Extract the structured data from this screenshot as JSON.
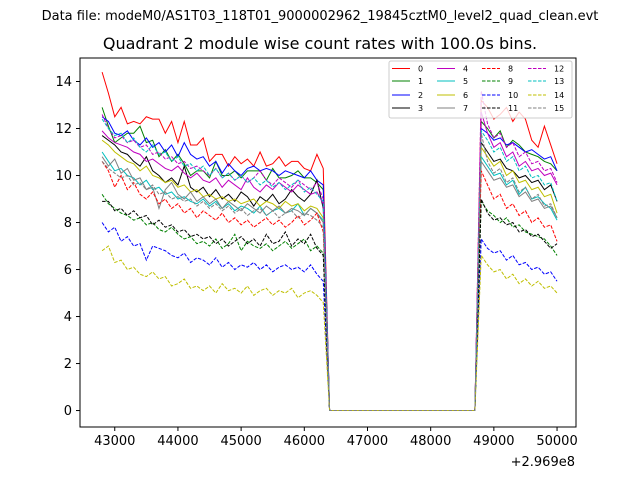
{
  "chart_data": {
    "type": "line",
    "suptitle": "Data file: modeM0/AS1T03_118T01_9000002962_19845cztM0_level2_quad_clean.evt",
    "title": "Quadrant 2 module wise count rates with 100.0s bins.",
    "xlabel": "",
    "ylabel": "",
    "x_offset_label": "+2.969e8",
    "xlim": [
      42450,
      50300
    ],
    "ylim": [
      -0.7,
      15.0
    ],
    "x_ticks": [
      43000,
      44000,
      45000,
      46000,
      47000,
      48000,
      49000,
      50000
    ],
    "x_tick_labels": [
      "43000",
      "44000",
      "45000",
      "46000",
      "47000",
      "48000",
      "49000",
      "50000"
    ],
    "y_ticks": [
      0,
      2,
      4,
      6,
      8,
      10,
      12,
      14
    ],
    "y_tick_labels": [
      "0",
      "2",
      "4",
      "6",
      "8",
      "10",
      "12",
      "14"
    ],
    "legend_position": "top-right",
    "legend_ncol": 4,
    "bin_width": 100,
    "segments": [
      {
        "x_start": 42800,
        "count": 36
      },
      {
        "x_start": 46400,
        "count": 24,
        "flat_value": 0.0
      },
      {
        "x_start": 48800,
        "count": 13
      }
    ],
    "series": [
      {
        "name": "0",
        "color": "#ff0000",
        "dash": "solid",
        "seg1": [
          14.4,
          13.5,
          12.5,
          12.9,
          12.2,
          12.3,
          12.2,
          12.5,
          12.4,
          12.4,
          11.8,
          12.3,
          11.4,
          12.3,
          11.3,
          11.3,
          11.6,
          10.6,
          10.9,
          10.9,
          10.4,
          10.8,
          10.5,
          10.7,
          10.4,
          11.0,
          10.4,
          10.5,
          10.8,
          10.4,
          10.6,
          10.6,
          10.3,
          10.2,
          10.9,
          10.3
        ],
        "seg3": [
          13.2,
          12.9,
          12.4,
          12.6,
          12.9,
          12.3,
          12.7,
          12.4,
          11.5,
          11.2,
          12.1,
          11.3,
          10.5
        ]
      },
      {
        "name": "1",
        "color": "#008000",
        "dash": "solid",
        "seg1": [
          12.9,
          12.1,
          11.4,
          11.6,
          11.8,
          11.8,
          12.1,
          11.4,
          11.5,
          10.8,
          11.1,
          10.6,
          10.9,
          10.5,
          10.0,
          10.2,
          10.2,
          9.9,
          10.6,
          10.0,
          10.0,
          10.2,
          9.9,
          10.2,
          10.2,
          10.2,
          9.8,
          10.3,
          9.9,
          9.9,
          10.0,
          10.2,
          9.9,
          9.9,
          9.7,
          9.4
        ],
        "seg3": [
          12.3,
          12.0,
          11.6,
          11.9,
          11.2,
          11.5,
          11.3,
          11.0,
          10.9,
          10.8,
          10.6,
          10.5,
          10.2
        ]
      },
      {
        "name": "2",
        "color": "#0000ff",
        "dash": "solid",
        "seg1": [
          12.5,
          12.3,
          11.8,
          11.7,
          11.9,
          11.5,
          11.3,
          11.6,
          11.2,
          11.4,
          11.0,
          11.3,
          10.8,
          11.4,
          10.9,
          10.7,
          10.8,
          10.4,
          10.6,
          10.1,
          10.5,
          10.2,
          10.0,
          10.3,
          10.4,
          10.2,
          10.3,
          10.2,
          10.0,
          10.2,
          10.1,
          10.0,
          9.9,
          10.2,
          9.8,
          9.6
        ],
        "seg3": [
          12.0,
          11.8,
          11.5,
          11.6,
          11.3,
          11.4,
          11.2,
          11.0,
          11.1,
          10.9,
          10.7,
          10.8,
          10.2
        ]
      },
      {
        "name": "3",
        "color": "#000000",
        "dash": "solid",
        "seg1": [
          11.7,
          11.5,
          11.3,
          11.0,
          10.9,
          10.6,
          10.4,
          10.8,
          10.2,
          10.0,
          9.7,
          9.9,
          9.6,
          10.4,
          9.5,
          9.3,
          9.5,
          9.1,
          9.4,
          9.0,
          9.2,
          8.9,
          9.3,
          9.1,
          8.7,
          9.1,
          8.9,
          9.2,
          8.8,
          9.0,
          9.4,
          9.1,
          8.9,
          9.2,
          9.8,
          8.6
        ],
        "seg3": [
          11.4,
          11.0,
          10.6,
          10.7,
          10.3,
          10.2,
          9.9,
          10.0,
          9.7,
          9.8,
          9.4,
          9.6,
          8.9
        ]
      },
      {
        "name": "4",
        "color": "#bf00bf",
        "dash": "solid",
        "seg1": [
          11.9,
          11.6,
          11.4,
          11.3,
          11.2,
          11.0,
          10.9,
          10.6,
          10.7,
          10.5,
          10.3,
          10.2,
          10.4,
          10.1,
          9.9,
          10.1,
          9.8,
          9.7,
          9.9,
          9.5,
          9.8,
          9.6,
          9.4,
          9.9,
          9.5,
          9.3,
          9.6,
          9.4,
          9.7,
          9.5,
          9.3,
          9.6,
          9.4,
          9.2,
          9.3,
          8.8
        ],
        "seg3": [
          12.7,
          11.8,
          11.2,
          11.4,
          10.8,
          11.0,
          10.4,
          10.6,
          10.2,
          10.3,
          10.0,
          10.1,
          9.6
        ]
      },
      {
        "name": "5",
        "color": "#00bfbf",
        "dash": "solid",
        "seg1": [
          11.0,
          10.6,
          10.2,
          10.3,
          10.0,
          9.9,
          9.6,
          9.8,
          9.4,
          9.5,
          9.2,
          9.3,
          9.0,
          9.1,
          8.9,
          8.8,
          9.0,
          8.7,
          8.9,
          8.6,
          8.8,
          8.5,
          8.7,
          8.6,
          8.4,
          8.7,
          8.3,
          8.5,
          8.6,
          8.4,
          8.5,
          8.8,
          8.3,
          8.6,
          8.4,
          8.1
        ],
        "seg3": [
          10.8,
          10.4,
          10.0,
          10.1,
          9.6,
          9.8,
          9.2,
          9.5,
          9.0,
          9.1,
          8.8,
          8.6,
          8.1
        ]
      },
      {
        "name": "6",
        "color": "#bfbf00",
        "dash": "solid",
        "seg1": [
          11.5,
          11.3,
          11.0,
          10.8,
          10.6,
          10.5,
          10.2,
          10.4,
          10.0,
          9.9,
          9.7,
          9.8,
          9.5,
          9.6,
          9.3,
          9.4,
          9.1,
          9.2,
          9.0,
          9.1,
          8.9,
          9.0,
          8.8,
          8.9,
          9.0,
          8.7,
          8.9,
          8.8,
          8.6,
          8.9,
          8.7,
          8.8,
          8.5,
          8.7,
          8.6,
          8.2
        ],
        "seg3": [
          11.2,
          10.8,
          10.4,
          10.6,
          10.0,
          10.2,
          9.7,
          9.8,
          9.4,
          9.5,
          9.1,
          9.2,
          8.4
        ]
      },
      {
        "name": "7",
        "color": "#808080",
        "dash": "solid",
        "seg1": [
          10.8,
          10.4,
          10.7,
          10.1,
          10.3,
          9.8,
          9.9,
          9.4,
          9.5,
          8.6,
          9.4,
          9.7,
          9.2,
          9.0,
          9.3,
          8.9,
          9.1,
          8.8,
          9.0,
          8.6,
          8.9,
          8.7,
          8.5,
          8.8,
          8.6,
          8.4,
          8.7,
          8.5,
          8.7,
          8.4,
          8.6,
          8.5,
          8.3,
          8.6,
          8.4,
          8.0
        ],
        "seg3": [
          10.6,
          10.2,
          9.8,
          9.9,
          9.5,
          9.6,
          9.1,
          9.3,
          8.9,
          9.0,
          8.6,
          8.7,
          8.2
        ]
      },
      {
        "name": "8",
        "color": "#ff0000",
        "dash": "dashed",
        "seg1": [
          10.6,
          10.2,
          9.5,
          10.0,
          9.4,
          9.7,
          9.2,
          9.0,
          9.3,
          8.8,
          9.0,
          8.6,
          8.8,
          8.4,
          8.6,
          8.2,
          8.5,
          8.3,
          8.1,
          8.4,
          8.0,
          8.2,
          7.9,
          8.1,
          7.8,
          8.0,
          8.2,
          7.9,
          8.1,
          7.8,
          8.0,
          8.3,
          7.9,
          8.1,
          8.4,
          7.6
        ],
        "seg3": [
          10.2,
          9.6,
          9.0,
          9.2,
          8.6,
          8.8,
          8.3,
          8.5,
          8.0,
          8.2,
          7.8,
          7.9,
          7.2
        ]
      },
      {
        "name": "9",
        "color": "#008000",
        "dash": "dashed",
        "seg1": [
          9.2,
          8.8,
          8.6,
          8.4,
          8.3,
          8.1,
          8.2,
          7.9,
          8.0,
          7.7,
          7.6,
          7.8,
          7.5,
          7.3,
          7.4,
          7.1,
          7.2,
          7.0,
          7.3,
          6.9,
          7.1,
          7.5,
          6.8,
          7.2,
          7.0,
          6.9,
          7.1,
          6.8,
          7.0,
          7.2,
          6.9,
          7.1,
          7.3,
          6.8,
          7.0,
          6.7
        ],
        "seg3": [
          8.9,
          8.5,
          8.3,
          8.0,
          8.2,
          7.8,
          7.9,
          7.6,
          7.5,
          7.4,
          7.3,
          7.0,
          6.6
        ]
      },
      {
        "name": "10",
        "color": "#0000ff",
        "dash": "dashed",
        "seg1": [
          8.0,
          7.6,
          7.8,
          7.2,
          7.4,
          7.0,
          7.1,
          6.4,
          7.0,
          6.9,
          6.8,
          6.6,
          6.5,
          6.7,
          6.3,
          6.5,
          6.4,
          6.2,
          6.5,
          6.1,
          6.3,
          6.0,
          6.2,
          6.1,
          6.3,
          6.0,
          6.2,
          5.9,
          6.1,
          6.2,
          6.0,
          6.1,
          5.9,
          6.2,
          5.8,
          5.5
        ],
        "seg3": [
          7.3,
          6.9,
          6.7,
          6.8,
          6.4,
          6.6,
          6.2,
          6.3,
          6.0,
          6.1,
          5.8,
          5.9,
          5.5
        ]
      },
      {
        "name": "11",
        "color": "#000000",
        "dash": "dashed",
        "seg1": [
          8.9,
          8.9,
          8.5,
          8.6,
          8.3,
          8.5,
          8.2,
          8.3,
          7.9,
          8.1,
          7.8,
          7.9,
          7.6,
          7.7,
          7.4,
          7.5,
          7.3,
          7.4,
          7.1,
          7.3,
          7.0,
          7.2,
          7.4,
          7.1,
          7.3,
          7.0,
          7.5,
          7.1,
          7.2,
          7.6,
          7.0,
          7.3,
          7.1,
          7.5,
          6.9,
          6.6
        ],
        "seg3": [
          9.0,
          8.4,
          8.1,
          8.2,
          7.9,
          8.0,
          7.6,
          7.7,
          7.4,
          7.5,
          7.2,
          6.9,
          7.1
        ]
      },
      {
        "name": "12",
        "color": "#bf00bf",
        "dash": "dashed",
        "seg1": [
          12.6,
          12.0,
          11.6,
          11.7,
          11.4,
          11.5,
          11.2,
          11.3,
          10.9,
          11.0,
          10.7,
          10.8,
          10.5,
          10.6,
          10.3,
          10.4,
          10.2,
          10.0,
          10.3,
          9.9,
          10.1,
          9.8,
          10.0,
          9.7,
          9.9,
          10.2,
          9.8,
          9.6,
          9.9,
          9.7,
          9.5,
          9.8,
          9.6,
          9.4,
          9.7,
          9.0
        ],
        "seg3": [
          13.6,
          12.2,
          11.6,
          11.8,
          11.2,
          11.4,
          10.8,
          11.0,
          10.5,
          10.6,
          10.2,
          10.3,
          9.7
        ]
      },
      {
        "name": "13",
        "color": "#00bfbf",
        "dash": "dashed",
        "seg1": [
          12.4,
          12.0,
          11.7,
          11.8,
          11.4,
          11.6,
          11.2,
          11.0,
          11.3,
          10.9,
          11.0,
          10.6,
          10.8,
          10.4,
          10.5,
          10.2,
          10.4,
          10.0,
          10.3,
          9.9,
          10.1,
          9.8,
          10.0,
          9.7,
          9.9,
          9.6,
          9.8,
          9.5,
          9.7,
          9.4,
          9.6,
          9.8,
          9.3,
          9.5,
          9.2,
          8.9
        ],
        "seg3": [
          11.9,
          11.5,
          11.0,
          11.2,
          10.6,
          10.8,
          10.2,
          10.4,
          9.9,
          10.0,
          9.6,
          9.7,
          8.9
        ]
      },
      {
        "name": "14",
        "color": "#bfbf00",
        "dash": "dashed",
        "seg1": [
          6.8,
          7.0,
          6.3,
          6.4,
          6.0,
          6.1,
          5.8,
          5.7,
          5.9,
          5.6,
          5.7,
          5.3,
          5.4,
          5.6,
          5.2,
          5.3,
          5.1,
          5.3,
          5.0,
          5.4,
          5.1,
          5.2,
          5.0,
          5.3,
          4.9,
          5.1,
          5.2,
          4.9,
          5.1,
          5.0,
          5.2,
          4.8,
          5.0,
          5.1,
          4.9,
          4.6
        ],
        "seg3": [
          6.6,
          6.2,
          5.9,
          6.0,
          5.6,
          5.8,
          5.4,
          5.6,
          5.3,
          5.5,
          5.2,
          5.3,
          5.0
        ]
      },
      {
        "name": "15",
        "color": "#808080",
        "dash": "dashed",
        "seg1": [
          10.6,
          10.3,
          10.1,
          9.9,
          10.0,
          9.6,
          9.7,
          9.4,
          9.6,
          9.2,
          9.3,
          9.0,
          9.1,
          8.9,
          9.0,
          8.7,
          8.9,
          8.6,
          8.8,
          8.5,
          8.7,
          8.4,
          8.6,
          8.3,
          8.5,
          8.6,
          8.3,
          8.5,
          8.2,
          8.4,
          8.5,
          8.2,
          8.4,
          8.3,
          8.1,
          7.8
        ],
        "seg3": [
          11.8,
          10.6,
          10.1,
          10.3,
          9.7,
          9.9,
          9.3,
          9.5,
          9.0,
          9.2,
          8.7,
          8.8,
          8.2
        ]
      }
    ]
  }
}
